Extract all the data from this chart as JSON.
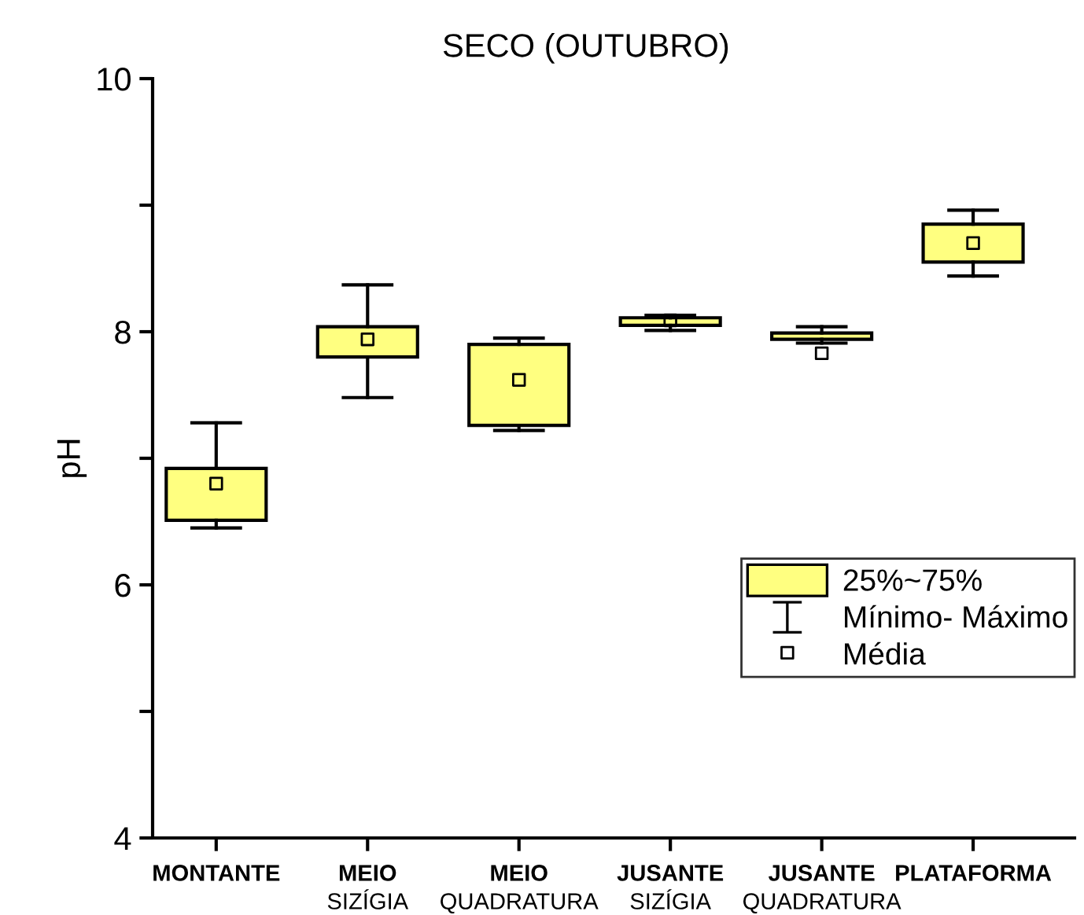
{
  "chart_data": {
    "type": "box",
    "title": "SECO (OUTUBRO)",
    "ylabel": "pH",
    "categories": [
      "MONTANTE",
      "MEIO\nSIZÍGIA",
      "MEIO\nQUADRATURA",
      "JUSANTE\nSIZÍGIA",
      "JUSANTE\nQUADRATURA",
      "PLATAFORMA"
    ],
    "annotations": [
      "Mínimo- Máximo"
    ],
    "series": [
      {
        "name": "25%~75%",
        "color": "#ffff80",
        "boxes": [
          {
            "low": 6.45,
            "q1": 6.51,
            "q3": 6.92,
            "high": 7.28
          },
          {
            "low": 7.48,
            "q1": 7.8,
            "q3": 8.04,
            "high": 8.37
          },
          {
            "low": 7.22,
            "q1": 7.26,
            "q3": 7.9,
            "high": 7.95
          },
          {
            "low": 8.01,
            "q1": 8.05,
            "q3": 8.11,
            "high": 8.13
          },
          {
            "low": 7.91,
            "q1": 7.94,
            "q3": 7.99,
            "high": 8.04
          },
          {
            "low": 8.44,
            "q1": 8.55,
            "q3": 8.85,
            "high": 8.96
          }
        ]
      },
      {
        "type": "scatter",
        "name": "Média",
        "color": "#000000",
        "marker": "square",
        "x": [
          "MONTANTE",
          "MEIO\nSIZÍGIA",
          "MEIO\nQUADRATURA",
          "JUSANTE\nSIZÍGIA",
          "JUSANTE\nQUADRATURA",
          "PLATAFORMA"
        ],
        "values": [
          6.8,
          7.94,
          7.62,
          8.09,
          7.83,
          8.7
        ]
      }
    ],
    "ylim": [
      4,
      10
    ],
    "yticks": [
      4,
      {
        "value": 5,
        "label": null
      },
      6,
      {
        "value": 7,
        "label": null
      },
      8,
      {
        "value": 9,
        "label": null
      },
      10
    ],
    "grid": false,
    "legend": "right"
  }
}
